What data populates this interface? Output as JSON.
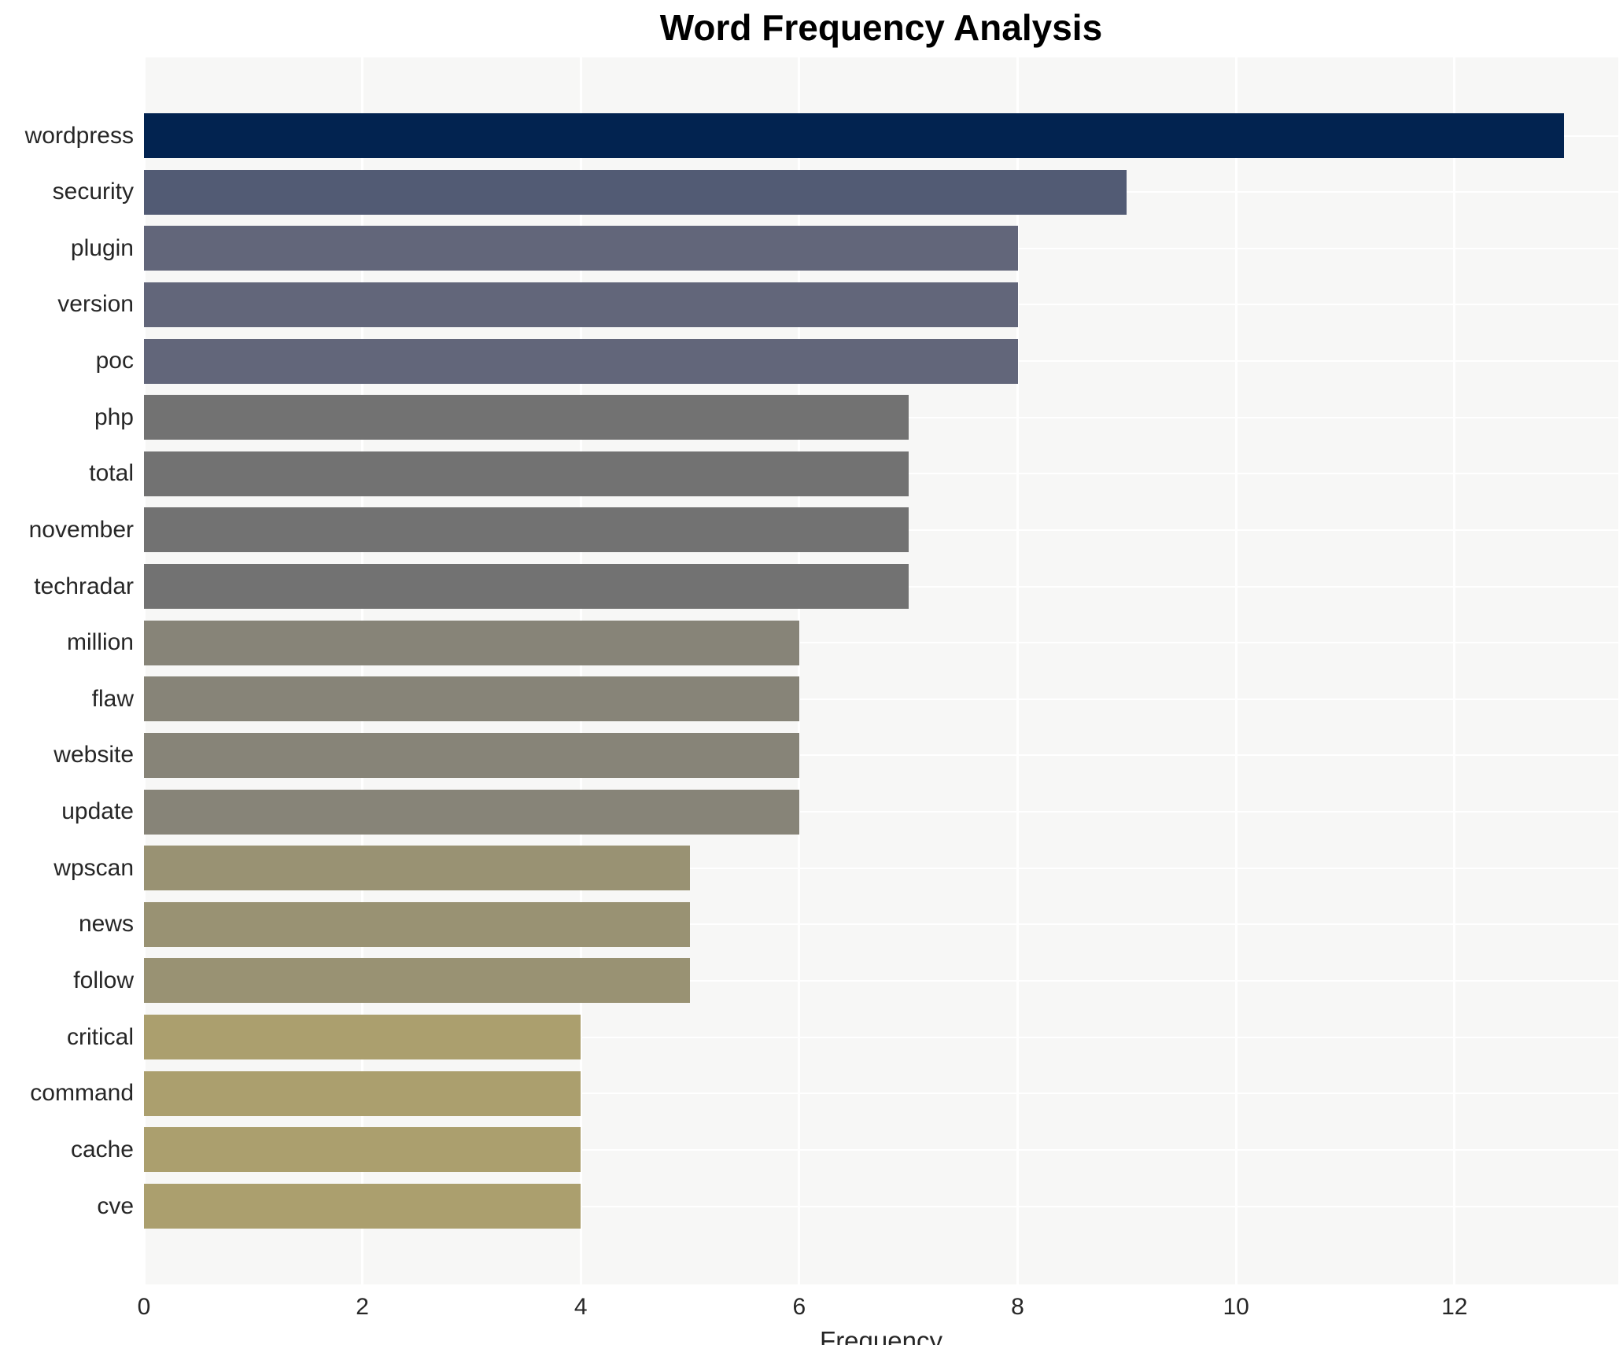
{
  "chart_data": {
    "type": "bar",
    "orientation": "horizontal",
    "title": "Word Frequency Analysis",
    "xlabel": "Frequency",
    "ylabel": "",
    "categories": [
      "wordpress",
      "security",
      "plugin",
      "version",
      "poc",
      "php",
      "total",
      "november",
      "techradar",
      "million",
      "flaw",
      "website",
      "update",
      "wpscan",
      "news",
      "follow",
      "critical",
      "command",
      "cache",
      "cve"
    ],
    "values": [
      13,
      9,
      8,
      8,
      8,
      7,
      7,
      7,
      7,
      6,
      6,
      6,
      6,
      5,
      5,
      5,
      4,
      4,
      4,
      4
    ],
    "bar_colors": [
      "#022350",
      "#525b74",
      "#62667a",
      "#62667a",
      "#62667a",
      "#727272",
      "#727272",
      "#727272",
      "#727272",
      "#878478",
      "#878478",
      "#878478",
      "#878478",
      "#999273",
      "#999273",
      "#999273",
      "#ab9f6e",
      "#ab9f6e",
      "#ab9f6e",
      "#ab9f6e"
    ],
    "xlim": [
      0,
      13.5
    ],
    "x_ticks": [
      0,
      2,
      4,
      6,
      8,
      10,
      12
    ],
    "x_tick_labels": [
      "0",
      "2",
      "4",
      "6",
      "8",
      "10",
      "12"
    ],
    "grid": "on",
    "legend": "none",
    "theme": {
      "plot_background": "#f7f7f6",
      "grid_color": "#ffffff",
      "tick_label_color": "#262626",
      "title_color": "#000000"
    }
  }
}
